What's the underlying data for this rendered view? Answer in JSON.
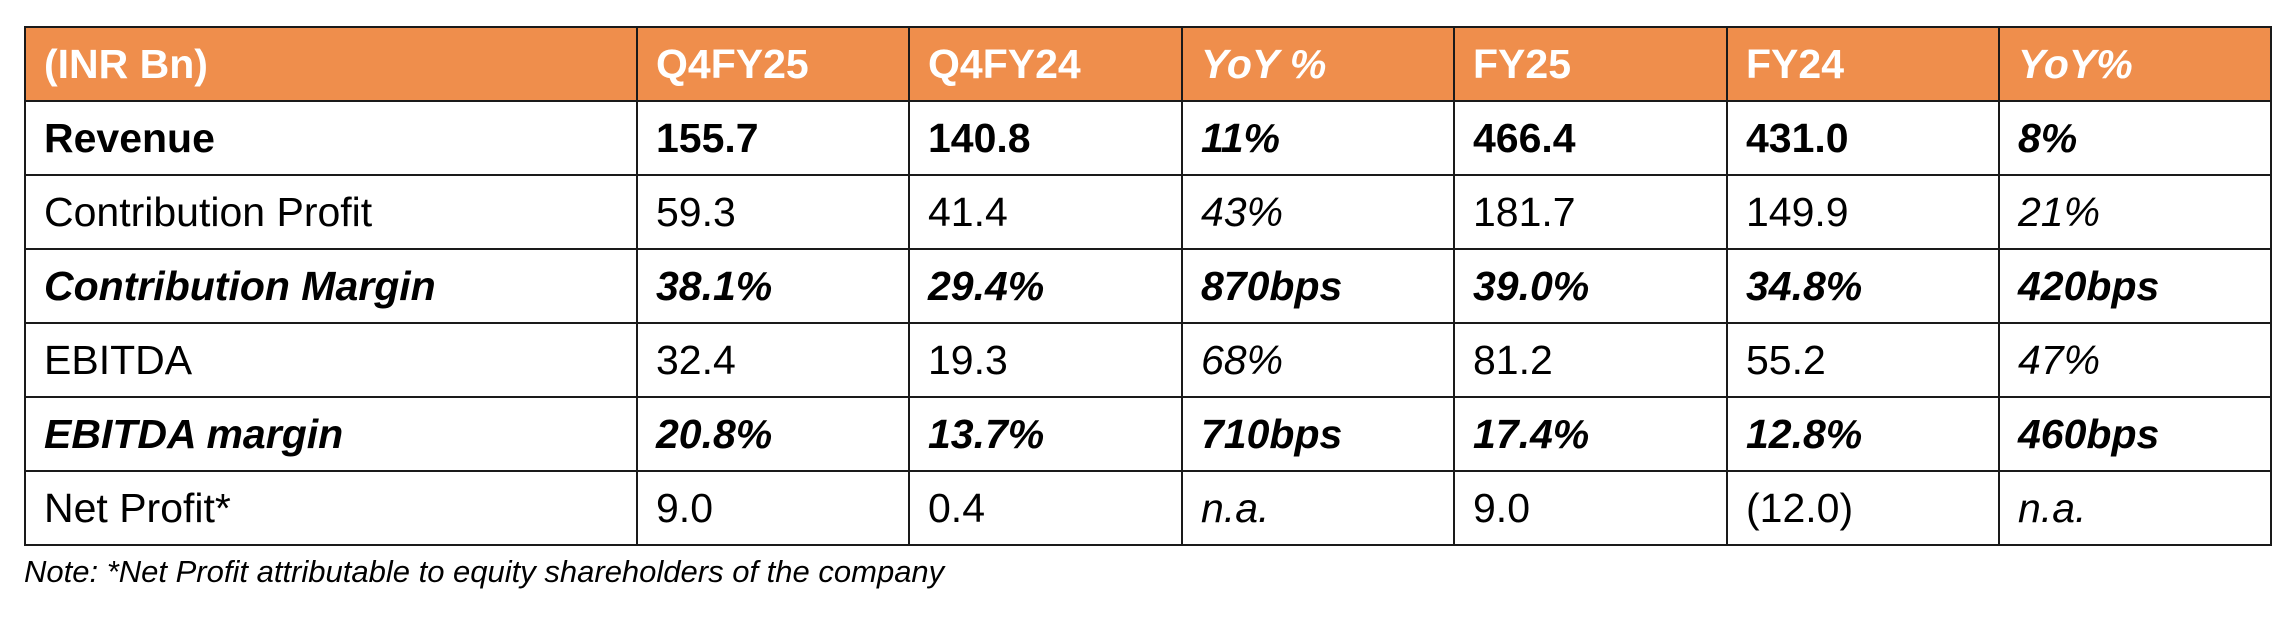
{
  "table": {
    "header": [
      "(INR Bn)",
      "Q4FY25",
      "Q4FY24",
      "YoY %",
      "FY25",
      "FY24",
      "YoY%"
    ],
    "rows": [
      {
        "label": "Revenue",
        "values": [
          "155.7",
          "140.8",
          "11%",
          "466.4",
          "431.0",
          "8%"
        ]
      },
      {
        "label": "Contribution Profit",
        "values": [
          "59.3",
          "41.4",
          "43%",
          "181.7",
          "149.9",
          "21%"
        ]
      },
      {
        "label": "Contribution Margin",
        "values": [
          "38.1%",
          "29.4%",
          "870bps",
          "39.0%",
          "34.8%",
          "420bps"
        ]
      },
      {
        "label": "EBITDA",
        "values": [
          "32.4",
          "19.3",
          "68%",
          "81.2",
          "55.2",
          "47%"
        ]
      },
      {
        "label": "EBITDA margin",
        "values": [
          "20.8%",
          "13.7%",
          "710bps",
          "17.4%",
          "12.8%",
          "460bps"
        ]
      },
      {
        "label": "Net Profit*",
        "values": [
          "9.0",
          "0.4",
          "n.a.",
          "9.0",
          "(12.0)",
          "n.a."
        ]
      }
    ]
  },
  "note": "Note: *Net Profit attributable to equity shareholders of the company",
  "colors": {
    "header_bg": "#ef8e4c",
    "header_text": "#ffffff",
    "border": "#1a1a1a"
  }
}
